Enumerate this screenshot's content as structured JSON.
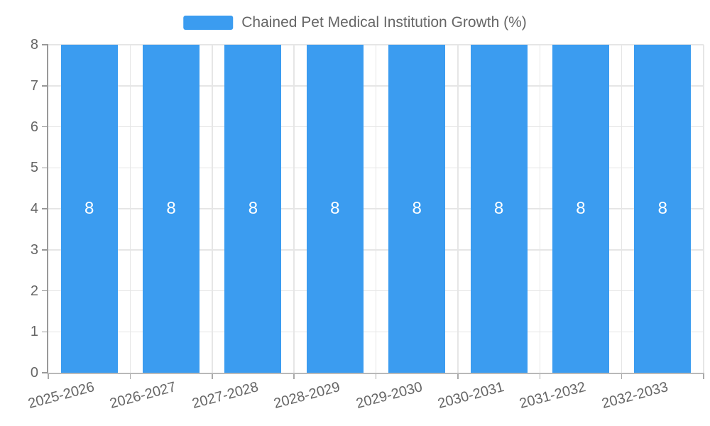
{
  "legend": {
    "label": "Chained Pet Medical Institution Growth (%)",
    "swatch_color": "#3b9cf0"
  },
  "chart_data": {
    "type": "bar",
    "title": "Chained Pet Medical Institution Growth (%)",
    "categories": [
      "2025-2026",
      "2026-2027",
      "2027-2028",
      "2028-2029",
      "2029-2030",
      "2030-2031",
      "2031-2032",
      "2032-2033"
    ],
    "series": [
      {
        "name": "Chained Pet Medical Institution Growth (%)",
        "values": [
          8,
          8,
          8,
          8,
          8,
          8,
          8,
          8
        ]
      }
    ],
    "value_labels": [
      "8",
      "8",
      "8",
      "8",
      "8",
      "8",
      "8",
      "8"
    ],
    "xlabel": "",
    "ylabel": "",
    "ylim": [
      0,
      8
    ],
    "yticks": [
      0,
      1,
      2,
      3,
      4,
      5,
      6,
      7,
      8
    ],
    "grid": true,
    "legend_position": "top-center",
    "x_label_rotation_deg": -15,
    "colors": {
      "bar": "#3b9cf0",
      "value_label_text": "#ffffff",
      "axis_text": "#666666",
      "gridline": "#e6e6e6",
      "axis_line": "#999999"
    }
  }
}
